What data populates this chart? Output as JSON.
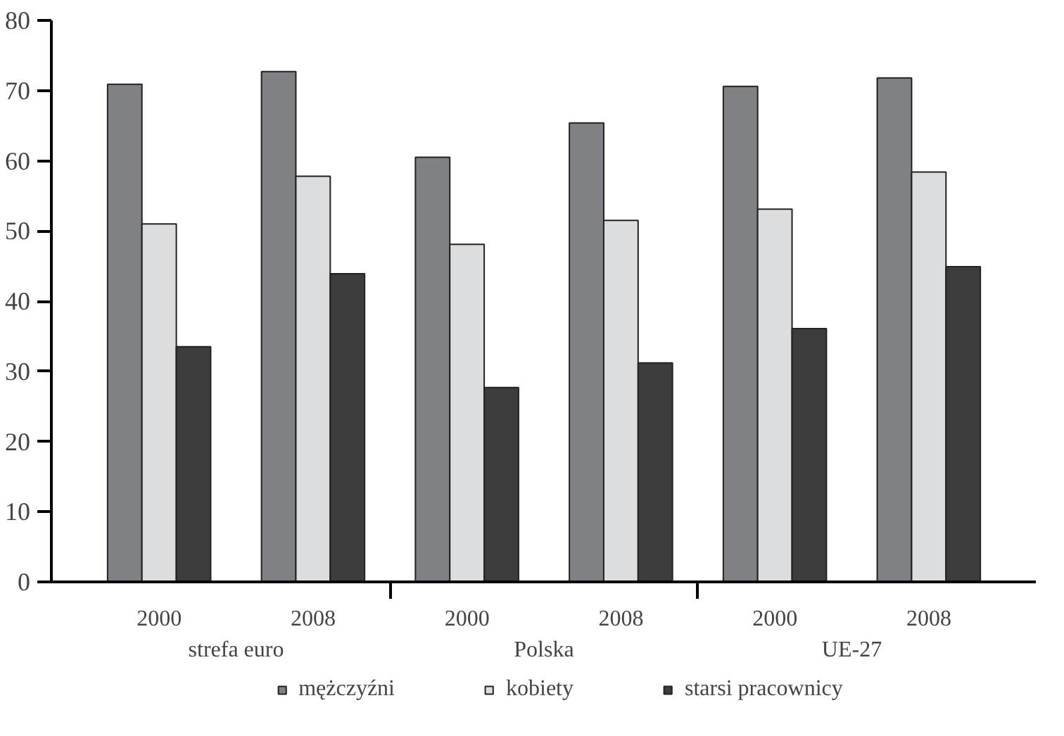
{
  "chart_data": {
    "type": "bar",
    "categories": [
      "2000",
      "2008",
      "2000",
      "2008",
      "2000",
      "2008"
    ],
    "annotations": [
      "strefa euro",
      "Polska",
      "UE-27"
    ],
    "series": [
      {
        "name": "mężczyźni",
        "color": "#808184",
        "values": [
          70.9,
          72.7,
          60.5,
          65.4,
          70.6,
          71.8
        ]
      },
      {
        "name": "kobiety",
        "color": "#dcdddf",
        "values": [
          51.0,
          57.8,
          48.1,
          51.5,
          53.1,
          58.4
        ]
      },
      {
        "name": "starsi pracownicy",
        "color": "#3c3c3c",
        "values": [
          33.5,
          43.9,
          27.7,
          31.2,
          36.1,
          44.9
        ]
      }
    ],
    "ylim": [
      0,
      80
    ],
    "yticks": [
      0,
      10,
      20,
      30,
      40,
      50,
      60,
      70,
      80
    ],
    "grid": false,
    "legend": "bottom"
  }
}
